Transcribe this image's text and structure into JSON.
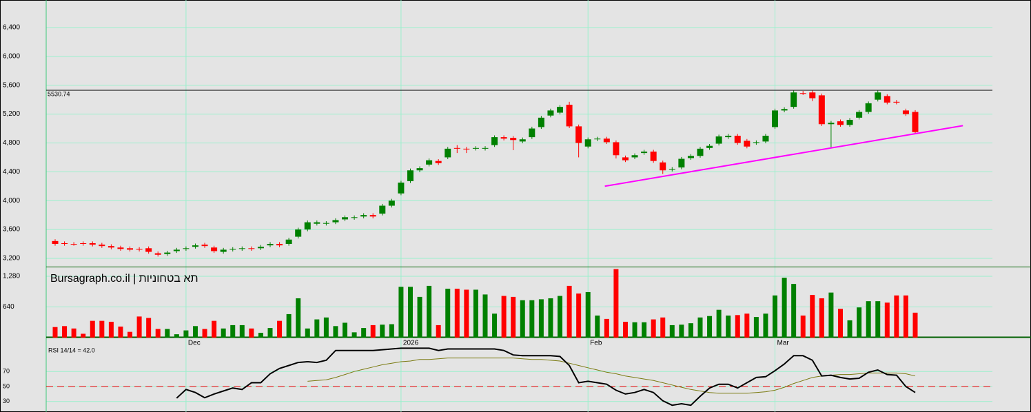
{
  "chart_data": [
    {
      "type": "candlestick",
      "up_color": "#008000",
      "down_color": "#ff0000",
      "open": [
        3440,
        3410,
        3400,
        3410,
        3410,
        3390,
        3370,
        3350,
        3340,
        3330,
        3340,
        3270,
        3260,
        3300,
        3330,
        3360,
        3390,
        3350,
        3290,
        3320,
        3330,
        3340,
        3340,
        3380,
        3400,
        3400,
        3500,
        3600,
        3680,
        3680,
        3700,
        3740,
        3760,
        3780,
        3800,
        3820,
        3930,
        4100,
        4270,
        4420,
        4500,
        4550,
        4600,
        4730,
        4720,
        4720,
        4720,
        4770,
        4880,
        4870,
        4820,
        4880,
        5020,
        5180,
        5220,
        5330,
        5030,
        4750,
        4850,
        4860,
        4810,
        4600,
        4600,
        4660,
        4680,
        4530,
        4430,
        4460,
        4590,
        4620,
        4730,
        4790,
        4880,
        4900,
        4830,
        4800,
        4820,
        5020,
        5250,
        5300,
        5490,
        5500,
        5460,
        5060,
        5100,
        5050,
        5150,
        5230,
        5400,
        5450,
        5370,
        5250,
        5230
      ],
      "high": [
        3465,
        3435,
        3425,
        3435,
        3435,
        3415,
        3395,
        3375,
        3365,
        3355,
        3365,
        3295,
        3305,
        3345,
        3365,
        3405,
        3415,
        3375,
        3345,
        3355,
        3365,
        3365,
        3385,
        3425,
        3425,
        3485,
        3625,
        3725,
        3725,
        3715,
        3755,
        3795,
        3795,
        3825,
        3825,
        3955,
        4025,
        4275,
        4445,
        4475,
        4585,
        4575,
        4745,
        4770,
        4745,
        4755,
        4755,
        4905,
        4905,
        4895,
        4875,
        5025,
        5175,
        5275,
        5325,
        5370,
        5055,
        4875,
        4885,
        4885,
        4835,
        4625,
        4655,
        4705,
        4705,
        4555,
        4465,
        4605,
        4645,
        4745,
        4785,
        4915,
        4925,
        4925,
        4855,
        4835,
        4925,
        5275,
        5295,
        5525,
        5520,
        5525,
        5485,
        5105,
        5125,
        5145,
        5255,
        5375,
        5525,
        5475,
        5395,
        5275,
        5255
      ],
      "low": [
        3375,
        3375,
        3375,
        3375,
        3365,
        3345,
        3325,
        3305,
        3295,
        3295,
        3265,
        3225,
        3235,
        3275,
        3305,
        3335,
        3345,
        3275,
        3265,
        3295,
        3305,
        3305,
        3315,
        3355,
        3355,
        3375,
        3475,
        3575,
        3655,
        3655,
        3675,
        3715,
        3735,
        3755,
        3755,
        3795,
        3905,
        4075,
        4245,
        4395,
        4475,
        4495,
        4575,
        4660,
        4660,
        4695,
        4695,
        4745,
        4835,
        4700,
        4795,
        4855,
        4995,
        5155,
        5195,
        5005,
        4600,
        4725,
        4825,
        4785,
        4585,
        4535,
        4575,
        4635,
        4525,
        4370,
        4405,
        4435,
        4565,
        4595,
        4705,
        4765,
        4855,
        4775,
        4725,
        4775,
        4795,
        4995,
        5225,
        5275,
        5465,
        5380,
        5035,
        4740,
        5025,
        5025,
        5125,
        5205,
        5375,
        5335,
        5335,
        5175,
        4925
      ],
      "close": [
        3400,
        3400,
        3400,
        3400,
        3390,
        3370,
        3350,
        3330,
        3320,
        3320,
        3290,
        3250,
        3280,
        3320,
        3340,
        3380,
        3370,
        3300,
        3320,
        3330,
        3340,
        3330,
        3360,
        3400,
        3380,
        3460,
        3600,
        3700,
        3700,
        3690,
        3730,
        3770,
        3770,
        3800,
        3780,
        3930,
        4000,
        4250,
        4420,
        4450,
        4560,
        4520,
        4720,
        4720,
        4710,
        4730,
        4730,
        4880,
        4860,
        4840,
        4850,
        5000,
        5150,
        5250,
        5300,
        5030,
        4800,
        4850,
        4860,
        4810,
        4630,
        4560,
        4630,
        4680,
        4550,
        4420,
        4440,
        4580,
        4620,
        4720,
        4760,
        4890,
        4900,
        4800,
        4750,
        4810,
        4900,
        5250,
        5270,
        5500,
        5490,
        5420,
        5060,
        5080,
        5050,
        5120,
        5230,
        5350,
        5500,
        5360,
        5360,
        5200,
        4950
      ],
      "ylim": [
        3085,
        6782
      ],
      "yticks": [
        {
          "value": 3200,
          "label": "3,200"
        },
        {
          "value": 3600,
          "label": "3,600"
        },
        {
          "value": 4000,
          "label": "4,000"
        },
        {
          "value": 4400,
          "label": "4,400"
        },
        {
          "value": 4800,
          "label": "4,800"
        },
        {
          "value": 5200,
          "label": "5,200"
        },
        {
          "value": 5600,
          "label": "5,600"
        },
        {
          "value": 6000,
          "label": "6,000"
        },
        {
          "value": 6400,
          "label": "6,400"
        }
      ],
      "price_line": 5530.74,
      "trendline": {
        "x": [
          58.8,
          97.1
        ],
        "y": [
          4200,
          5040
        ],
        "color": "#ff00ff"
      },
      "grid": true,
      "grid_color": "#9af0cc"
    },
    {
      "type": "bar",
      "title": "Bursagraph.co.il | תא בטחוניות",
      "categories": [
        null,
        null,
        null,
        null,
        null,
        null,
        null,
        null,
        null,
        null,
        null,
        null,
        null,
        null,
        "Dec",
        null,
        null,
        null,
        null,
        null,
        null,
        null,
        null,
        null,
        null,
        null,
        null,
        null,
        null,
        null,
        null,
        null,
        null,
        null,
        null,
        null,
        null,
        "2026",
        null,
        null,
        null,
        null,
        null,
        null,
        null,
        null,
        null,
        null,
        null,
        null,
        null,
        null,
        null,
        null,
        null,
        null,
        null,
        "Feb",
        null,
        null,
        null,
        null,
        null,
        null,
        null,
        null,
        null,
        null,
        null,
        null,
        null,
        null,
        null,
        null,
        null,
        null,
        null,
        "Mar",
        null,
        null,
        null,
        null,
        null,
        null,
        null,
        null,
        null,
        null,
        null,
        null,
        null,
        null,
        null
      ],
      "values": [
        220,
        240,
        190,
        80,
        350,
        350,
        330,
        230,
        120,
        440,
        410,
        180,
        180,
        70,
        150,
        240,
        180,
        350,
        190,
        260,
        260,
        190,
        100,
        200,
        350,
        490,
        820,
        190,
        380,
        420,
        240,
        310,
        110,
        200,
        260,
        270,
        280,
        1060,
        1060,
        850,
        1080,
        260,
        1020,
        1020,
        1000,
        1000,
        900,
        500,
        870,
        850,
        780,
        780,
        800,
        820,
        870,
        1080,
        920,
        950,
        460,
        390,
        1430,
        330,
        320,
        320,
        380,
        420,
        260,
        270,
        300,
        420,
        450,
        580,
        460,
        470,
        500,
        430,
        500,
        880,
        1250,
        1120,
        460,
        890,
        820,
        940,
        600,
        360,
        630,
        760,
        760,
        730,
        880,
        880,
        520
      ],
      "ylim": [
        0,
        1467
      ],
      "yticks": [
        640,
        {
          "value": 1280,
          "label": "1,280"
        }
      ],
      "grid": true,
      "grid_color": "#9af0cc"
    },
    {
      "type": "line",
      "title": "RSI 14/14 = 42.0",
      "series": [
        {
          "color": "#000000",
          "values": [
            null,
            null,
            null,
            null,
            null,
            null,
            null,
            null,
            null,
            null,
            null,
            null,
            null,
            34.5,
            46,
            42,
            35,
            40,
            44,
            48,
            46,
            55,
            55,
            67,
            74,
            78,
            82,
            83,
            82,
            85,
            98,
            98,
            98,
            98,
            98,
            99,
            100,
            101,
            101,
            101,
            101,
            98,
            100,
            100,
            100,
            100,
            100,
            100,
            98,
            92,
            91,
            91,
            91,
            91,
            90,
            78,
            55,
            57,
            55,
            53,
            45,
            40,
            42,
            46,
            42,
            31,
            25,
            27,
            25,
            37,
            48,
            53,
            53,
            48,
            55,
            62,
            63,
            71,
            80,
            91,
            91,
            85,
            64,
            65,
            62,
            60,
            61,
            69,
            72,
            66,
            65,
            50,
            42
          ]
        },
        {
          "color": "#7a7a10",
          "values": [
            null,
            null,
            null,
            null,
            null,
            null,
            null,
            null,
            null,
            null,
            null,
            null,
            null,
            null,
            null,
            null,
            null,
            null,
            null,
            null,
            null,
            null,
            null,
            null,
            null,
            null,
            null,
            57,
            58,
            59,
            62,
            66,
            70,
            73,
            76,
            79,
            81,
            83,
            84,
            86,
            86,
            87,
            88,
            88,
            88,
            88,
            88,
            88,
            88,
            88,
            87,
            86,
            86,
            85,
            84,
            81,
            78,
            75,
            72,
            69,
            67,
            64,
            62,
            60,
            58,
            55,
            52,
            49,
            46,
            44,
            42,
            41,
            41,
            41,
            41,
            42,
            43,
            45,
            49,
            54,
            58,
            62,
            64,
            65,
            66,
            66,
            67,
            68,
            68,
            68,
            68,
            67,
            64
          ]
        }
      ],
      "ylim": [
        16,
        106
      ],
      "yticks": [
        30,
        50,
        70
      ],
      "reference_line": 50,
      "reference_color": "#e00000",
      "grid": true,
      "grid_color": "#9af0cc"
    }
  ]
}
